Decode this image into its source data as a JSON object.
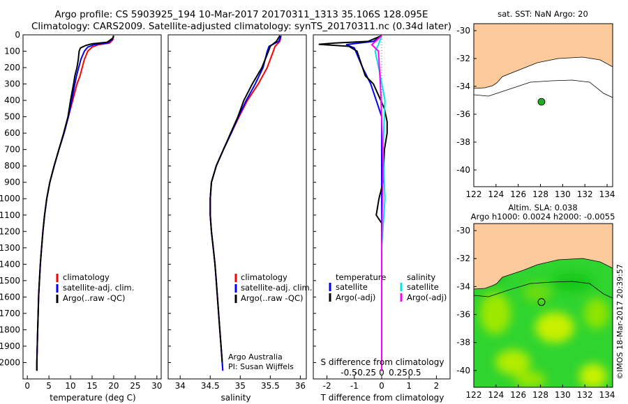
{
  "header": {
    "line1": "Argo profile: CS 5903925_194 10-Mar-2017 20170311_1313 35.106S 128.095E",
    "line2": "Climatology: CARS2009. Satellite-adjusted climatology: synTS_20170311.nc (0.34d later)"
  },
  "watermark": "©IMOS 18-Mar-2017 20:39:57",
  "colors": {
    "climatology": "#ff0000",
    "satellite": "#0000ff",
    "argo": "#000000",
    "sal_satellite": "#00e5e5",
    "sal_argo": "#ff00ff",
    "land": "#fdca9b",
    "anomaly_green": "#2fd42f",
    "anomaly_yellow": "#c8f000"
  },
  "chart_data": [
    {
      "type": "line",
      "id": "temperature",
      "xlabel": "temperature (deg C)",
      "ylabel": "",
      "xlim": [
        -1,
        31
      ],
      "ylim": [
        2100,
        0
      ],
      "xticks": [
        "0",
        "5",
        "10",
        "15",
        "20",
        "25",
        "30"
      ],
      "yticks": [
        "0",
        "100",
        "200",
        "300",
        "400",
        "500",
        "600",
        "700",
        "800",
        "900",
        "1000",
        "1100",
        "1200",
        "1300",
        "1400",
        "1500",
        "1600",
        "1700",
        "1800",
        "1900",
        "2000"
      ],
      "legend": [
        "climatology",
        "satellite-adj. clim.",
        "Argo(..raw -QC)"
      ],
      "series": [
        {
          "name": "climatology",
          "color_key": "climatology",
          "points": [
            [
              20,
              5
            ],
            [
              19.8,
              30
            ],
            [
              19,
              50
            ],
            [
              16.5,
              60
            ],
            [
              15,
              75
            ],
            [
              14,
              100
            ],
            [
              13.2,
              150
            ],
            [
              12.7,
              200
            ],
            [
              12.2,
              250
            ],
            [
              11.5,
              300
            ],
            [
              10.5,
              400
            ],
            [
              9.5,
              500
            ],
            [
              8.5,
              600
            ],
            [
              7.3,
              700
            ],
            [
              6.2,
              800
            ],
            [
              5.2,
              900
            ],
            [
              4.5,
              1000
            ],
            [
              4,
              1100
            ],
            [
              3.6,
              1200
            ],
            [
              3.3,
              1300
            ],
            [
              3,
              1400
            ],
            [
              2.8,
              1500
            ],
            [
              2.6,
              1600
            ],
            [
              2.5,
              1700
            ],
            [
              2.4,
              1800
            ],
            [
              2.3,
              1900
            ],
            [
              2.2,
              2000
            ],
            [
              2.2,
              2050
            ]
          ]
        },
        {
          "name": "satellite-adj. clim.",
          "color_key": "satellite",
          "points": [
            [
              20,
              5
            ],
            [
              19.6,
              30
            ],
            [
              18.5,
              50
            ],
            [
              15.5,
              60
            ],
            [
              14,
              75
            ],
            [
              13.2,
              100
            ],
            [
              12.4,
              150
            ],
            [
              11.9,
              200
            ],
            [
              11.4,
              250
            ],
            [
              11,
              300
            ],
            [
              10.3,
              400
            ],
            [
              9.5,
              500
            ],
            [
              8.5,
              600
            ],
            [
              7.3,
              700
            ],
            [
              6.2,
              800
            ],
            [
              5.2,
              900
            ],
            [
              4.5,
              1000
            ],
            [
              4,
              1100
            ],
            [
              3.6,
              1200
            ],
            [
              3.3,
              1300
            ],
            [
              3,
              1400
            ],
            [
              2.8,
              1500
            ],
            [
              2.6,
              1600
            ],
            [
              2.5,
              1700
            ],
            [
              2.4,
              1800
            ],
            [
              2.3,
              1900
            ],
            [
              2.2,
              2000
            ],
            [
              2.2,
              2050
            ]
          ]
        },
        {
          "name": "Argo(..raw -QC)",
          "color_key": "argo",
          "points": [
            [
              20,
              5
            ],
            [
              19.8,
              20
            ],
            [
              18.5,
              45
            ],
            [
              15,
              55
            ],
            [
              13.5,
              65
            ],
            [
              12.3,
              80
            ],
            [
              12,
              100
            ],
            [
              11.8,
              150
            ],
            [
              11.5,
              200
            ],
            [
              11,
              250
            ],
            [
              10.7,
              300
            ],
            [
              10,
              400
            ],
            [
              9.4,
              500
            ],
            [
              8.4,
              600
            ],
            [
              7.3,
              700
            ],
            [
              6.2,
              800
            ],
            [
              5.2,
              900
            ],
            [
              4.5,
              1000
            ],
            [
              4,
              1100
            ],
            [
              3.6,
              1200
            ],
            [
              3.3,
              1300
            ],
            [
              3,
              1400
            ],
            [
              2.8,
              1500
            ],
            [
              2.6,
              1600
            ],
            [
              2.5,
              1700
            ],
            [
              2.4,
              1800
            ],
            [
              2.3,
              1900
            ],
            [
              2.2,
              2000
            ],
            [
              2.2,
              2050
            ]
          ]
        }
      ]
    },
    {
      "type": "line",
      "id": "salinity",
      "xlabel": "salinity",
      "ylabel": "",
      "xlim": [
        33.8,
        36.1
      ],
      "ylim": [
        2100,
        0
      ],
      "xticks": [
        "34",
        "34.5",
        "35",
        "35.5",
        "36"
      ],
      "legend": [
        "climatology",
        "satellite-adj. clim.",
        "Argo(..raw -QC)"
      ],
      "annotation": [
        "Argo Australia",
        "PI: Susan Wijffels"
      ],
      "series": [
        {
          "name": "climatology",
          "color_key": "climatology",
          "points": [
            [
              35.68,
              5
            ],
            [
              35.66,
              40
            ],
            [
              35.58,
              70
            ],
            [
              35.55,
              100
            ],
            [
              35.45,
              200
            ],
            [
              35.3,
              300
            ],
            [
              35.12,
              400
            ],
            [
              34.98,
              500
            ],
            [
              34.85,
              600
            ],
            [
              34.72,
              700
            ],
            [
              34.6,
              800
            ],
            [
              34.52,
              900
            ],
            [
              34.5,
              1000
            ],
            [
              34.5,
              1100
            ],
            [
              34.52,
              1200
            ],
            [
              34.55,
              1300
            ],
            [
              34.58,
              1400
            ],
            [
              34.6,
              1500
            ],
            [
              34.62,
              1600
            ],
            [
              34.64,
              1700
            ],
            [
              34.66,
              1800
            ],
            [
              34.68,
              1900
            ],
            [
              34.7,
              2000
            ],
            [
              34.71,
              2050
            ]
          ]
        },
        {
          "name": "satellite-adj. clim.",
          "color_key": "satellite",
          "points": [
            [
              35.68,
              5
            ],
            [
              35.64,
              40
            ],
            [
              35.48,
              70
            ],
            [
              35.45,
              100
            ],
            [
              35.38,
              200
            ],
            [
              35.25,
              300
            ],
            [
              35.1,
              400
            ],
            [
              34.97,
              500
            ],
            [
              34.85,
              600
            ],
            [
              34.72,
              700
            ],
            [
              34.6,
              800
            ],
            [
              34.52,
              900
            ],
            [
              34.5,
              1000
            ],
            [
              34.5,
              1100
            ],
            [
              34.52,
              1200
            ],
            [
              34.55,
              1300
            ],
            [
              34.58,
              1400
            ],
            [
              34.6,
              1500
            ],
            [
              34.62,
              1600
            ],
            [
              34.64,
              1700
            ],
            [
              34.66,
              1800
            ],
            [
              34.68,
              1900
            ],
            [
              34.7,
              2000
            ],
            [
              34.71,
              2050
            ]
          ]
        },
        {
          "name": "Argo(..raw -QC)",
          "color_key": "argo",
          "points": [
            [
              35.66,
              5
            ],
            [
              35.6,
              40
            ],
            [
              35.5,
              70
            ],
            [
              35.47,
              100
            ],
            [
              35.36,
              200
            ],
            [
              35.2,
              300
            ],
            [
              35.06,
              400
            ],
            [
              34.96,
              500
            ],
            [
              34.84,
              600
            ],
            [
              34.72,
              700
            ],
            [
              34.6,
              800
            ],
            [
              34.52,
              900
            ],
            [
              34.5,
              1000
            ],
            [
              34.5,
              1100
            ],
            [
              34.52,
              1200
            ],
            [
              34.55,
              1300
            ],
            [
              34.58,
              1400
            ],
            [
              34.6,
              1500
            ],
            [
              34.62,
              1600
            ],
            [
              34.64,
              1700
            ],
            [
              34.66,
              1800
            ],
            [
              34.68,
              1900
            ],
            [
              34.7,
              2000
            ]
          ]
        }
      ]
    },
    {
      "type": "line",
      "id": "difference",
      "xlabel": "T difference from climatology",
      "xlabel2": "S difference from climatology",
      "ylim": [
        2100,
        0
      ],
      "xticks_T": [
        "-2",
        "-1",
        "0",
        "1",
        "2"
      ],
      "xlim_T": [
        -2.5,
        2.5
      ],
      "xticks_S": [
        "-0.5",
        "-0.25",
        "0",
        "0.25",
        "0.5"
      ],
      "legend": {
        "temperature_title": "temperature",
        "salinity_title": "salinity",
        "items": [
          "satellite",
          "Argo(-adj)",
          "satellite",
          "Argo(-adj)"
        ]
      },
      "series": [
        {
          "name": "satellite",
          "group": "temperature",
          "color_key": "satellite",
          "points": [
            [
              0,
              5
            ],
            [
              -0.3,
              40
            ],
            [
              -1.3,
              60
            ],
            [
              -1,
              80
            ],
            [
              -0.9,
              120
            ],
            [
              -0.7,
              200
            ],
            [
              -0.4,
              300
            ],
            [
              -0.2,
              400
            ],
            [
              0,
              500
            ],
            [
              0,
              600
            ],
            [
              0,
              700
            ],
            [
              0,
              800
            ],
            [
              0,
              900
            ],
            [
              0,
              1000
            ],
            [
              0,
              1200
            ],
            [
              0,
              1500
            ],
            [
              0,
              2050
            ]
          ]
        },
        {
          "name": "Argo(-adj)",
          "group": "temperature",
          "color_key": "argo",
          "points": [
            [
              0,
              5
            ],
            [
              -0.5,
              40
            ],
            [
              -1.7,
              50
            ],
            [
              -2.3,
              58
            ],
            [
              -1.2,
              70
            ],
            [
              -0.9,
              100
            ],
            [
              -0.8,
              150
            ],
            [
              -0.6,
              250
            ],
            [
              -0.3,
              300
            ],
            [
              0.1,
              450
            ],
            [
              0.2,
              530
            ],
            [
              0.2,
              600
            ],
            [
              0.1,
              700
            ],
            [
              0.05,
              900
            ],
            [
              -0.1,
              1000
            ],
            [
              -0.2,
              1100
            ],
            [
              0,
              1150
            ],
            [
              0,
              1500
            ],
            [
              0,
              2000
            ]
          ]
        },
        {
          "name": "satellite",
          "group": "salinity",
          "color_key": "sal_satellite",
          "points": [
            [
              0,
              5
            ],
            [
              -0.05,
              60
            ],
            [
              -0.1,
              100
            ],
            [
              -0.02,
              250
            ],
            [
              0.05,
              400
            ],
            [
              0.02,
              700
            ],
            [
              0.05,
              1000
            ],
            [
              0,
              1300
            ],
            [
              0,
              2050
            ]
          ]
        },
        {
          "name": "Argo(-adj)",
          "group": "salinity",
          "color_key": "sal_argo",
          "points": [
            [
              0,
              5
            ],
            [
              -0.15,
              60
            ],
            [
              -0.05,
              100
            ],
            [
              -0.02,
              300
            ],
            [
              0,
              500
            ],
            [
              0.02,
              800
            ],
            [
              0,
              1300
            ],
            [
              0,
              2050
            ]
          ]
        }
      ]
    },
    {
      "type": "map",
      "id": "sst_map",
      "title": "sat. SST: NaN Argo: 20",
      "xlim": [
        122,
        134.5
      ],
      "ylim": [
        -41.2,
        -29.5
      ],
      "xticks": [
        "122",
        "124",
        "126",
        "128",
        "130",
        "132",
        "134"
      ],
      "yticks": [
        "-30",
        "-32",
        "-34",
        "-36",
        "-38",
        "-40"
      ],
      "marker": {
        "lon": 128.095,
        "lat": -35.106
      }
    },
    {
      "type": "heatmap",
      "id": "sla_map",
      "title": "Altim. SLA: 0.038",
      "subtitle": "Argo h1000: 0.0024 h2000: -0.0055",
      "xlim": [
        122,
        134.5
      ],
      "ylim": [
        -41.2,
        -29.5
      ],
      "xticks": [
        "122",
        "124",
        "126",
        "128",
        "130",
        "132",
        "134"
      ],
      "yticks": [
        "-30",
        "-32",
        "-34",
        "-36",
        "-38",
        "-40"
      ],
      "marker": {
        "lon": 128.095,
        "lat": -35.106
      }
    }
  ]
}
